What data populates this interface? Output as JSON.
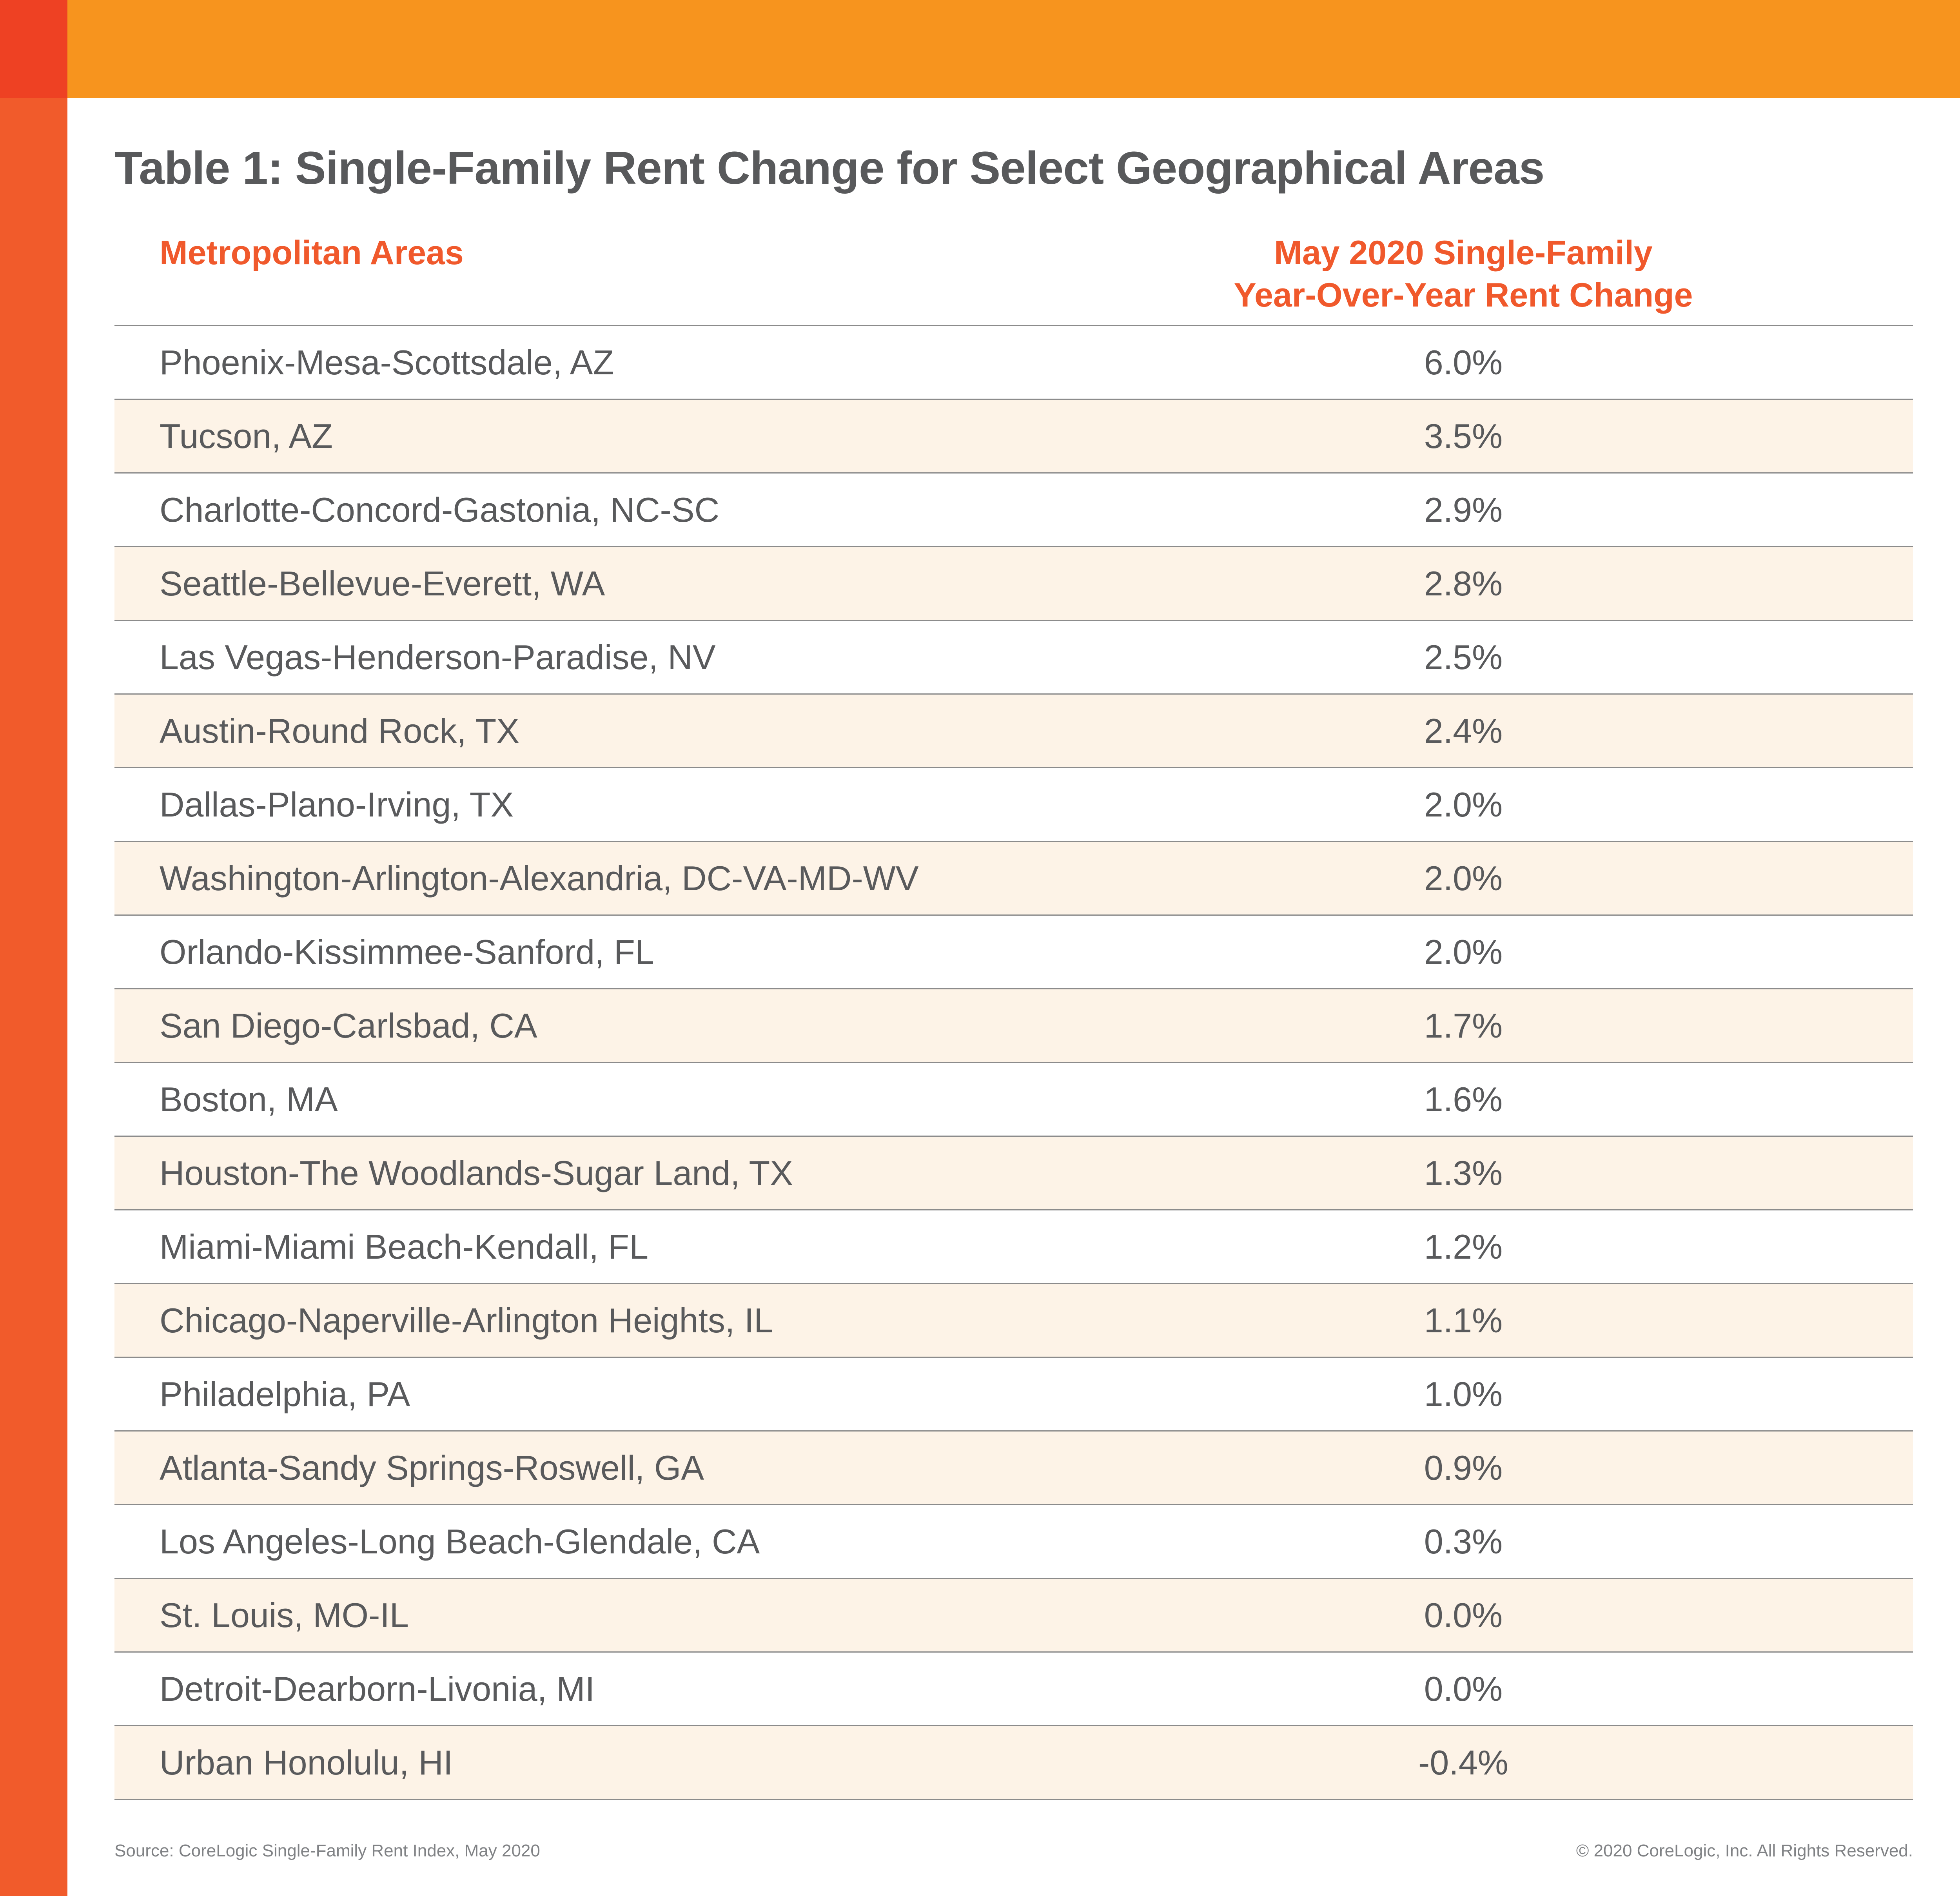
{
  "page": {
    "title": "Table 1: Single-Family Rent Change for Select Geographical Areas"
  },
  "colors": {
    "banner_orange": "#F7941E",
    "corner_red": "#EE4123",
    "stripe_orange": "#F15B2B",
    "header_text_orange": "#F0592C",
    "body_text_gray": "#595A5C",
    "title_gray": "#58595B",
    "divider_gray": "#8C8C8C",
    "zebra_cream": "#FDF3E7",
    "footer_gray": "#808285"
  },
  "table": {
    "col1_header": "Metropolitan Areas",
    "col2_header_line1": "May 2020 Single-Family",
    "col2_header_line2": "Year-Over-Year Rent Change",
    "rows": [
      {
        "area": "Phoenix-Mesa-Scottsdale, AZ",
        "change": "6.0%"
      },
      {
        "area": "Tucson, AZ",
        "change": "3.5%"
      },
      {
        "area": "Charlotte-Concord-Gastonia, NC-SC",
        "change": "2.9%"
      },
      {
        "area": "Seattle-Bellevue-Everett, WA",
        "change": "2.8%"
      },
      {
        "area": "Las Vegas-Henderson-Paradise, NV",
        "change": "2.5%"
      },
      {
        "area": "Austin-Round Rock, TX",
        "change": "2.4%"
      },
      {
        "area": "Dallas-Plano-Irving, TX",
        "change": "2.0%"
      },
      {
        "area": "Washington-Arlington-Alexandria, DC-VA-MD-WV",
        "change": "2.0%"
      },
      {
        "area": "Orlando-Kissimmee-Sanford, FL",
        "change": "2.0%"
      },
      {
        "area": "San Diego-Carlsbad, CA",
        "change": "1.7%"
      },
      {
        "area": "Boston, MA",
        "change": "1.6%"
      },
      {
        "area": "Houston-The Woodlands-Sugar Land, TX",
        "change": "1.3%"
      },
      {
        "area": "Miami-Miami Beach-Kendall, FL",
        "change": "1.2%"
      },
      {
        "area": "Chicago-Naperville-Arlington Heights, IL",
        "change": "1.1%"
      },
      {
        "area": "Philadelphia, PA",
        "change": "1.0%"
      },
      {
        "area": "Atlanta-Sandy Springs-Roswell, GA",
        "change": "0.9%"
      },
      {
        "area": "Los Angeles-Long Beach-Glendale, CA",
        "change": "0.3%"
      },
      {
        "area": "St. Louis, MO-IL",
        "change": "0.0%"
      },
      {
        "area": "Detroit-Dearborn-Livonia, MI",
        "change": "0.0%"
      },
      {
        "area": "Urban Honolulu, HI",
        "change": "-0.4%"
      }
    ]
  },
  "chart_data": {
    "type": "table",
    "title": "Table 1: Single-Family Rent Change for Select Geographical Areas",
    "columns": [
      "Metropolitan Areas",
      "May 2020 Single-Family Year-Over-Year Rent Change"
    ],
    "categories": [
      "Phoenix-Mesa-Scottsdale, AZ",
      "Tucson, AZ",
      "Charlotte-Concord-Gastonia, NC-SC",
      "Seattle-Bellevue-Everett, WA",
      "Las Vegas-Henderson-Paradise, NV",
      "Austin-Round Rock, TX",
      "Dallas-Plano-Irving, TX",
      "Washington-Arlington-Alexandria, DC-VA-MD-WV",
      "Orlando-Kissimmee-Sanford, FL",
      "San Diego-Carlsbad, CA",
      "Boston, MA",
      "Houston-The Woodlands-Sugar Land, TX",
      "Miami-Miami Beach-Kendall, FL",
      "Chicago-Naperville-Arlington Heights, IL",
      "Philadelphia, PA",
      "Atlanta-Sandy Springs-Roswell, GA",
      "Los Angeles-Long Beach-Glendale, CA",
      "St. Louis, MO-IL",
      "Detroit-Dearborn-Livonia, MI",
      "Urban Honolulu, HI"
    ],
    "values": [
      6.0,
      3.5,
      2.9,
      2.8,
      2.5,
      2.4,
      2.0,
      2.0,
      2.0,
      1.7,
      1.6,
      1.3,
      1.2,
      1.1,
      1.0,
      0.9,
      0.3,
      0.0,
      0.0,
      -0.4
    ],
    "value_unit": "%"
  },
  "footer": {
    "source": "Source: CoreLogic Single-Family Rent Index, May 2020",
    "copyright": "© 2020 CoreLogic, Inc. All Rights Reserved."
  }
}
